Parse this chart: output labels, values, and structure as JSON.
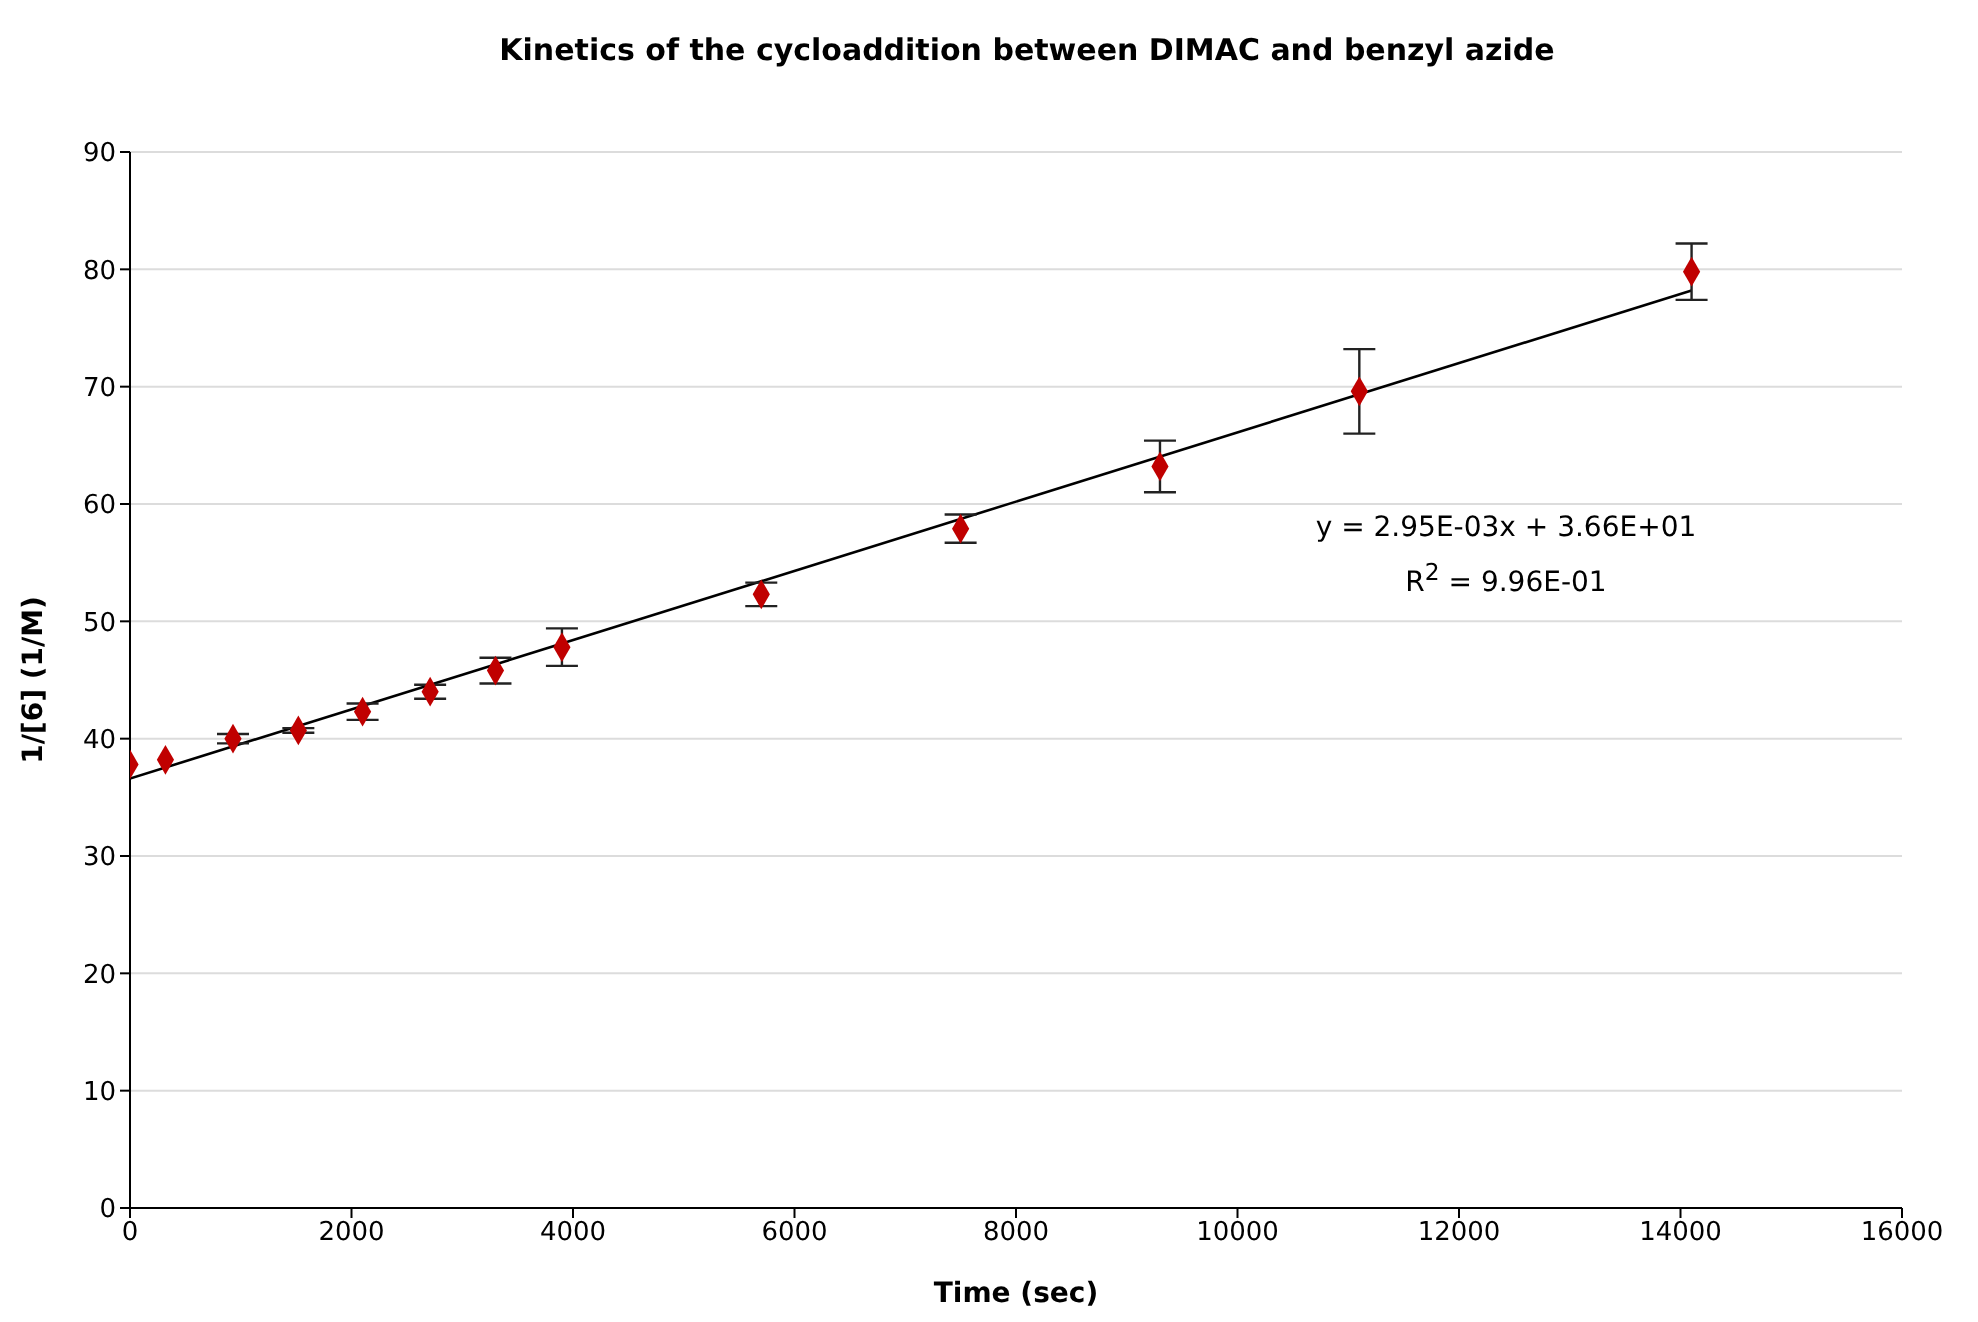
{
  "chart_data": {
    "type": "scatter",
    "title": "Kinetics of the cycloaddition between DIMAC and benzyl azide",
    "xlabel": "Time (sec)",
    "ylabel": "1/[6] (1/M)",
    "x": [
      0,
      320,
      930,
      1520,
      2100,
      2710,
      3300,
      3900,
      5700,
      7500,
      9300,
      11100,
      14100
    ],
    "series": [
      {
        "color": "#c00000",
        "values": [
          37.8,
          38.2,
          40.0,
          40.7,
          42.3,
          44.0,
          45.8,
          47.8,
          52.3,
          57.9,
          63.2,
          69.6,
          79.8
        ],
        "errors": [
          null,
          null,
          0.4,
          0.2,
          0.7,
          0.6,
          1.1,
          1.6,
          1.0,
          1.2,
          2.2,
          3.6,
          2.4
        ],
        "marker": "diamond"
      },
      {
        "type": "line",
        "color": "#000000",
        "x": [
          0,
          14100
        ],
        "values": [
          36.6,
          78.2
        ],
        "marker": "none"
      }
    ],
    "annotations": [
      "y = 2.95E-03x + 3.66E+01",
      "R$^{2}$ = 9.96E-01"
    ],
    "xlim": [
      0,
      16000
    ],
    "xticks": [
      0,
      2000,
      4000,
      6000,
      8000,
      10000,
      12000,
      14000,
      16000
    ],
    "ylim": [
      0,
      90
    ],
    "yticks": [
      0,
      10,
      20,
      30,
      40,
      50,
      60,
      70,
      80,
      90
    ],
    "grid": "y"
  }
}
